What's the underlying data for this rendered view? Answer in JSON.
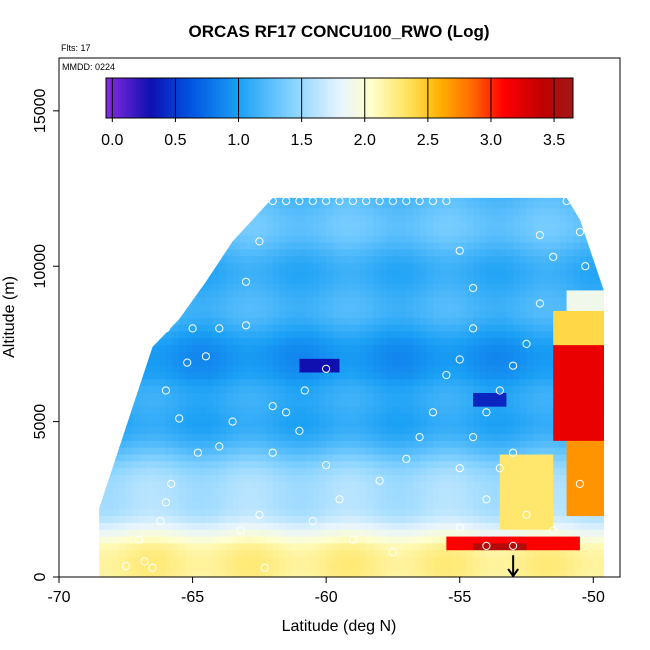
{
  "chart_data": {
    "type": "heatmap",
    "title": "ORCAS RF17 CONCU100_RWO (Log)",
    "annotations": {
      "flights": "Flts: 17",
      "mmdd": "MMDD: 0224"
    },
    "xlabel": "Latitude (deg N)",
    "ylabel": "Altitude (m)",
    "xlim": [
      -70,
      -49
    ],
    "ylim": [
      0,
      16700
    ],
    "x_ticks": [
      -70,
      -65,
      -60,
      -55,
      -50
    ],
    "x_tick_labels": [
      "-70",
      "-65",
      "-60",
      "-55",
      "-50"
    ],
    "y_ticks": [
      0,
      5000,
      10000,
      15000
    ],
    "y_tick_labels": [
      "0",
      "5000",
      "10000",
      "15000"
    ],
    "colorbar": {
      "min": -0.05,
      "max": 3.65,
      "ticks": [
        0.0,
        0.5,
        1.0,
        1.5,
        2.0,
        2.5,
        3.0,
        3.5
      ],
      "tick_labels": [
        "0.0",
        "0.5",
        "1.0",
        "1.5",
        "2.0",
        "2.5",
        "3.0",
        "3.5"
      ],
      "stops": [
        {
          "v": -0.05,
          "color": "#8a2be2"
        },
        {
          "v": 0.3,
          "color": "#1010b0"
        },
        {
          "v": 0.6,
          "color": "#0050e0"
        },
        {
          "v": 1.0,
          "color": "#1aa0f5"
        },
        {
          "v": 1.4,
          "color": "#7fd0ff"
        },
        {
          "v": 1.8,
          "color": "#e6f4ff"
        },
        {
          "v": 2.05,
          "color": "#ffffcc"
        },
        {
          "v": 2.35,
          "color": "#ffe25a"
        },
        {
          "v": 2.6,
          "color": "#ffb000"
        },
        {
          "v": 2.85,
          "color": "#ff6a00"
        },
        {
          "v": 3.1,
          "color": "#ff0000"
        },
        {
          "v": 3.4,
          "color": "#c00000"
        },
        {
          "v": 3.65,
          "color": "#a01818"
        }
      ]
    },
    "lat_range": [
      -68.5,
      -49.6
    ],
    "upper_boundary": [
      {
        "lat": -68.5,
        "alt": 2200
      },
      {
        "lat": -67.5,
        "alt": 4800
      },
      {
        "lat": -66.5,
        "alt": 7400
      },
      {
        "lat": -65.5,
        "alt": 8300
      },
      {
        "lat": -64.5,
        "alt": 9500
      },
      {
        "lat": -63.5,
        "alt": 10800
      },
      {
        "lat": -62.0,
        "alt": 12200
      },
      {
        "lat": -51.0,
        "alt": 12200
      },
      {
        "lat": -50.5,
        "alt": 11500
      },
      {
        "lat": -49.6,
        "alt": 9200
      }
    ],
    "value_model": {
      "background": [
        {
          "alt": 0,
          "value": 2.2
        },
        {
          "alt": 1000,
          "value": 2.1
        },
        {
          "alt": 2000,
          "value": 1.7
        },
        {
          "alt": 3500,
          "value": 1.4
        },
        {
          "alt": 5000,
          "value": 1.1
        },
        {
          "alt": 6500,
          "value": 0.95
        },
        {
          "alt": 8500,
          "value": 1.1
        },
        {
          "alt": 10500,
          "value": 1.2
        },
        {
          "alt": 12500,
          "value": 1.3
        }
      ],
      "features": [
        {
          "lat_min": -61.0,
          "lat_max": -59.5,
          "alt_min": 6650,
          "alt_max": 7100,
          "value": 0.3
        },
        {
          "lat_min": -54.5,
          "lat_max": -53.3,
          "alt_min": 5450,
          "alt_max": 5950,
          "value": 0.4
        },
        {
          "lat_min": -55.5,
          "lat_max": -50.5,
          "alt_min": 800,
          "alt_max": 1300,
          "value": 3.1
        },
        {
          "lat_min": -54.5,
          "lat_max": -52.5,
          "alt_min": 900,
          "alt_max": 1200,
          "value": 3.5
        },
        {
          "lat_min": -51.5,
          "lat_max": -49.6,
          "alt_min": 4500,
          "alt_max": 7500,
          "value": 3.2
        },
        {
          "lat_min": -51.0,
          "lat_max": -49.6,
          "alt_min": 2000,
          "alt_max": 4500,
          "value": 2.7
        },
        {
          "lat_min": -53.5,
          "lat_max": -51.5,
          "alt_min": 1500,
          "alt_max": 4000,
          "value": 2.3
        },
        {
          "lat_min": -51.5,
          "lat_max": -49.6,
          "alt_min": 7500,
          "alt_max": 8500,
          "value": 2.4
        },
        {
          "lat_min": -51.0,
          "lat_max": -49.6,
          "alt_min": 8500,
          "alt_max": 9300,
          "value": 1.9
        }
      ]
    },
    "sample_points": [
      {
        "lat": -67.5,
        "alt": 350
      },
      {
        "lat": -66.8,
        "alt": 500
      },
      {
        "lat": -66.5,
        "alt": 300
      },
      {
        "lat": -67.0,
        "alt": 1200
      },
      {
        "lat": -66.2,
        "alt": 1800
      },
      {
        "lat": -66.0,
        "alt": 2400
      },
      {
        "lat": -65.8,
        "alt": 3000
      },
      {
        "lat": -64.8,
        "alt": 4000
      },
      {
        "lat": -65.5,
        "alt": 5100
      },
      {
        "lat": -66.0,
        "alt": 6000
      },
      {
        "lat": -65.2,
        "alt": 6900
      },
      {
        "lat": -64.5,
        "alt": 7100
      },
      {
        "lat": -66.0,
        "alt": 8000
      },
      {
        "lat": -65.0,
        "alt": 8000
      },
      {
        "lat": -64.0,
        "alt": 8000
      },
      {
        "lat": -63.0,
        "alt": 8100
      },
      {
        "lat": -63.5,
        "alt": 5000
      },
      {
        "lat": -64.0,
        "alt": 4200
      },
      {
        "lat": -63.2,
        "alt": 1500
      },
      {
        "lat": -62.5,
        "alt": 2000
      },
      {
        "lat": -62.3,
        "alt": 300
      },
      {
        "lat": -63.0,
        "alt": 9500
      },
      {
        "lat": -62.5,
        "alt": 10800
      },
      {
        "lat": -62.0,
        "alt": 12100
      },
      {
        "lat": -61.5,
        "alt": 12100
      },
      {
        "lat": -61.0,
        "alt": 12100
      },
      {
        "lat": -60.5,
        "alt": 12100
      },
      {
        "lat": -60.0,
        "alt": 12100
      },
      {
        "lat": -59.5,
        "alt": 12100
      },
      {
        "lat": -59.0,
        "alt": 12100
      },
      {
        "lat": -58.5,
        "alt": 12100
      },
      {
        "lat": -58.0,
        "alt": 12100
      },
      {
        "lat": -57.5,
        "alt": 12100
      },
      {
        "lat": -57.0,
        "alt": 12100
      },
      {
        "lat": -56.5,
        "alt": 12100
      },
      {
        "lat": -56.0,
        "alt": 12100
      },
      {
        "lat": -55.5,
        "alt": 12100
      },
      {
        "lat": -55.0,
        "alt": 10500
      },
      {
        "lat": -54.5,
        "alt": 9300
      },
      {
        "lat": -54.5,
        "alt": 8000
      },
      {
        "lat": -55.0,
        "alt": 7000
      },
      {
        "lat": -55.5,
        "alt": 6500
      },
      {
        "lat": -56.0,
        "alt": 5300
      },
      {
        "lat": -56.5,
        "alt": 4500
      },
      {
        "lat": -57.0,
        "alt": 3800
      },
      {
        "lat": -58.0,
        "alt": 3100
      },
      {
        "lat": -59.5,
        "alt": 2500
      },
      {
        "lat": -60.0,
        "alt": 3600
      },
      {
        "lat": -61.5,
        "alt": 5300
      },
      {
        "lat": -60.8,
        "alt": 6000
      },
      {
        "lat": -60.0,
        "alt": 6700
      },
      {
        "lat": -61.0,
        "alt": 4700
      },
      {
        "lat": -62.0,
        "alt": 4000
      },
      {
        "lat": -55.0,
        "alt": 3500
      },
      {
        "lat": -54.5,
        "alt": 4500
      },
      {
        "lat": -54.0,
        "alt": 5300
      },
      {
        "lat": -53.5,
        "alt": 6000
      },
      {
        "lat": -53.0,
        "alt": 6800
      },
      {
        "lat": -52.5,
        "alt": 7500
      },
      {
        "lat": -52.0,
        "alt": 8800
      },
      {
        "lat": -51.5,
        "alt": 10300
      },
      {
        "lat": -52.0,
        "alt": 11000
      },
      {
        "lat": -51.0,
        "alt": 12100
      },
      {
        "lat": -50.5,
        "alt": 11100
      },
      {
        "lat": -50.3,
        "alt": 10000
      },
      {
        "lat": -53.0,
        "alt": 4000
      },
      {
        "lat": -53.5,
        "alt": 3500
      },
      {
        "lat": -54.0,
        "alt": 2500
      },
      {
        "lat": -52.5,
        "alt": 2000
      },
      {
        "lat": -51.5,
        "alt": 1500
      },
      {
        "lat": -53.0,
        "alt": 1000
      },
      {
        "lat": -54.0,
        "alt": 1000
      },
      {
        "lat": -50.5,
        "alt": 3000
      },
      {
        "lat": -57.5,
        "alt": 800
      },
      {
        "lat": -59.0,
        "alt": 1200
      },
      {
        "lat": -60.5,
        "alt": 1800
      },
      {
        "lat": -62.0,
        "alt": 5500
      },
      {
        "lat": -55.0,
        "alt": 1600
      }
    ],
    "arrow_marker": {
      "lat": -53.0,
      "alt_top": 700,
      "alt_bottom": 0
    }
  }
}
